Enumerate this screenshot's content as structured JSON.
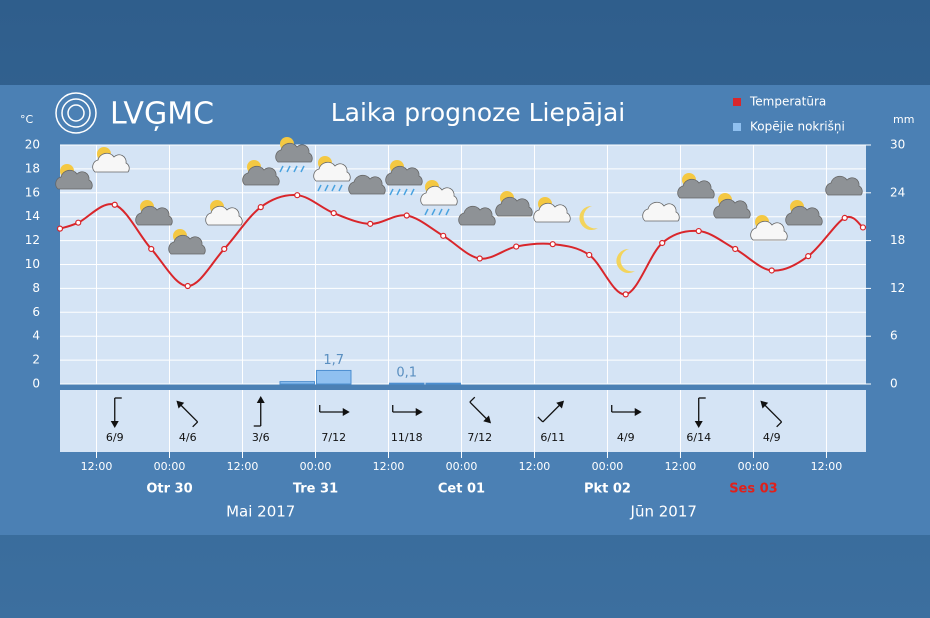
{
  "header": {
    "logo": "LVĢMC"
  },
  "chart_data": {
    "type": "weather",
    "title": "Laika prognoze Liepājai",
    "y_unit": "°C",
    "y2_unit": "mm",
    "xlim": [
      6,
      138.5
    ],
    "xticks": [
      {
        "value": 12,
        "label": "12:00"
      },
      {
        "value": 24,
        "label": "00:00"
      },
      {
        "value": 36,
        "label": "12:00"
      },
      {
        "value": 48,
        "label": "00:00"
      },
      {
        "value": 60,
        "label": "12:00"
      },
      {
        "value": 72,
        "label": "00:00"
      },
      {
        "value": 84,
        "label": "12:00"
      },
      {
        "value": 96,
        "label": "00:00"
      },
      {
        "value": 108,
        "label": "12:00"
      },
      {
        "value": 120,
        "label": "00:00"
      },
      {
        "value": 132,
        "label": "12:00"
      }
    ],
    "day_ticks": [
      {
        "value": 24,
        "label": "Otr 30"
      },
      {
        "value": 48,
        "label": "Tre 31"
      },
      {
        "value": 72,
        "label": "Cet 01"
      },
      {
        "value": 96,
        "label": "Pkt 02"
      },
      {
        "value": 120,
        "label": "Ses 03",
        "color": "#e0201b"
      }
    ],
    "months": [
      {
        "label": "Mai 2017"
      },
      {
        "label": "Jūn 2017",
        "start": 72
      }
    ],
    "ylim": [
      0,
      20
    ],
    "yticks": [
      0,
      2,
      4,
      6,
      8,
      10,
      12,
      14,
      16,
      18,
      20
    ],
    "y2lim": [
      0,
      30
    ],
    "y2ticks": [
      0,
      6,
      12,
      18,
      24,
      30
    ],
    "grid": true,
    "legend": "top-right",
    "series": [
      {
        "name": "Temperatūra",
        "color": "#d9262b",
        "type": "line",
        "x": [
          6,
          9,
          15,
          21,
          27,
          33,
          39,
          45,
          51,
          57,
          63,
          69,
          75,
          81,
          87,
          93,
          99,
          105,
          111,
          117,
          123,
          129,
          135,
          138
        ],
        "values": [
          13.0,
          13.5,
          15.0,
          11.3,
          8.2,
          11.3,
          14.8,
          15.8,
          14.3,
          13.4,
          14.1,
          12.4,
          10.5,
          11.5,
          11.7,
          10.8,
          7.5,
          11.8,
          12.8,
          11.3,
          9.5,
          10.7,
          13.9,
          13.1
        ]
      },
      {
        "name": "Kopējie nokrišņi",
        "color": "#8fc0f0",
        "type": "bar",
        "axis": "y2",
        "x": [
          42,
          48,
          60,
          66
        ],
        "values": [
          0.3,
          1.7,
          0.1,
          0.1
        ],
        "value_labels": [
          null,
          "1,7",
          "0,1",
          null
        ]
      }
    ],
    "wind": {
      "x": [
        15,
        27,
        39,
        51,
        63,
        75,
        87,
        99,
        111,
        123
      ],
      "labels": [
        "6/9",
        "4/6",
        "3/6",
        "7/12",
        "11/18",
        "7/12",
        "6/11",
        "4/9",
        "6/14",
        "4/9"
      ]
    }
  }
}
